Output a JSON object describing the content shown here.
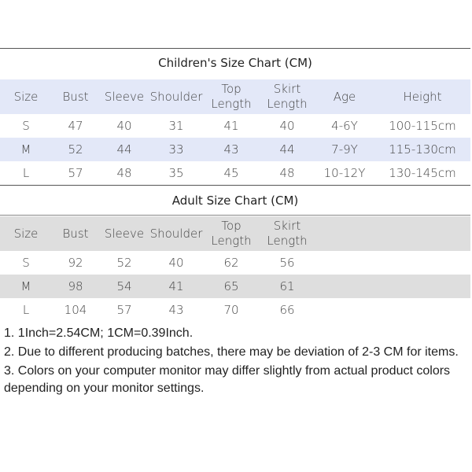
{
  "children": {
    "title": "Children's Size Chart (CM)",
    "headers": [
      [
        "Size"
      ],
      [
        "Bust"
      ],
      [
        "Sleeve"
      ],
      [
        "Shoulder"
      ],
      [
        "Top",
        "Length"
      ],
      [
        "Skirt",
        "Length"
      ],
      [
        "Age"
      ],
      [
        "Height"
      ]
    ],
    "rows": [
      [
        "S",
        "47",
        "40",
        "31",
        "41",
        "40",
        "4-6Y",
        "100-115cm"
      ],
      [
        "M",
        "52",
        "44",
        "33",
        "43",
        "44",
        "7-9Y",
        "115-130cm"
      ],
      [
        "L",
        "57",
        "48",
        "35",
        "45",
        "48",
        "10-12Y",
        "130-145cm"
      ]
    ],
    "shade_color": "#e3e8f8"
  },
  "adult": {
    "title": "Adult Size Chart (CM)",
    "headers": [
      [
        "Size"
      ],
      [
        "Bust"
      ],
      [
        "Sleeve"
      ],
      [
        "Shoulder"
      ],
      [
        "Top",
        "Length"
      ],
      [
        "Skirt",
        "Length"
      ],
      [
        ""
      ],
      [
        ""
      ]
    ],
    "rows": [
      [
        "S",
        "92",
        "52",
        "40",
        "62",
        "56",
        "",
        ""
      ],
      [
        "M",
        "98",
        "54",
        "41",
        "65",
        "61",
        "",
        ""
      ],
      [
        "L",
        "104",
        "57",
        "43",
        "70",
        "66",
        "",
        ""
      ]
    ],
    "shade_color": "#dedede"
  },
  "notes": [
    "1. 1Inch=2.54CM; 1CM=0.39Inch.",
    "2. Due to different producing batches, there may be deviation of 2-3 CM for items.",
    "3. Colors on your computer monitor may differ slightly from actual product colors depending on your monitor settings."
  ]
}
